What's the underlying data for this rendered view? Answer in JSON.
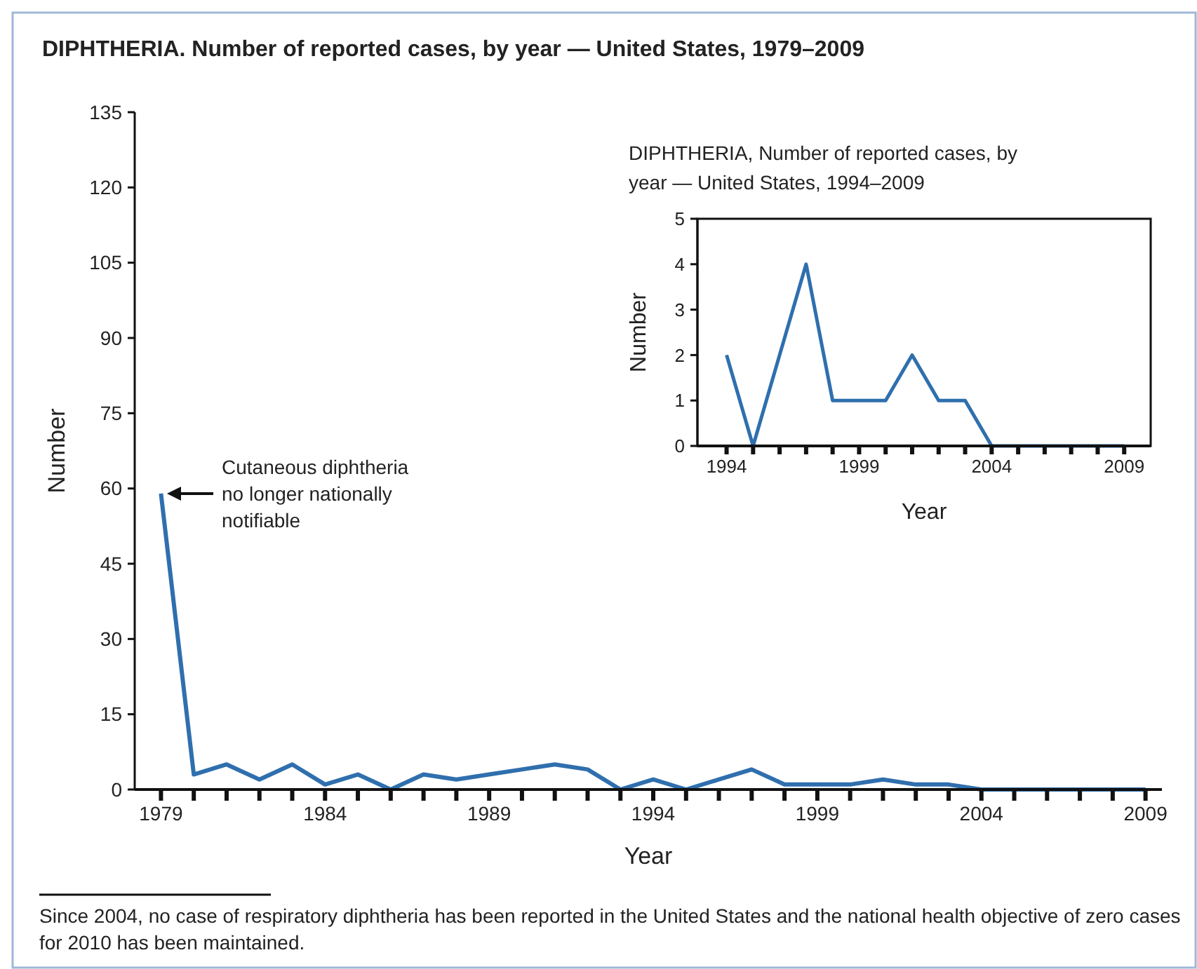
{
  "chart_data": [
    {
      "type": "line",
      "title": "DIPHTHERIA. Number of reported cases, by year — United States, 1979–2009",
      "xlabel": "Year",
      "ylabel": "Number",
      "x": [
        1979,
        1980,
        1981,
        1982,
        1983,
        1984,
        1985,
        1986,
        1987,
        1988,
        1989,
        1990,
        1991,
        1992,
        1993,
        1994,
        1995,
        1996,
        1997,
        1998,
        1999,
        2000,
        2001,
        2002,
        2003,
        2004,
        2005,
        2006,
        2007,
        2008,
        2009
      ],
      "series": [
        {
          "color": "#2f6fae",
          "values": [
            59,
            3,
            5,
            2,
            5,
            1,
            3,
            0,
            3,
            2,
            3,
            4,
            5,
            4,
            0,
            2,
            0,
            2,
            4,
            1,
            1,
            1,
            2,
            1,
            1,
            0,
            0,
            0,
            0,
            0,
            0
          ]
        }
      ],
      "xlim": [
        1978.2,
        2009.5
      ],
      "ylim": [
        0,
        135
      ],
      "xticks": [
        1979,
        {
          "value": 1980,
          "label": null
        },
        {
          "value": 1981,
          "label": null
        },
        {
          "value": 1982,
          "label": null
        },
        {
          "value": 1983,
          "label": null
        },
        1984,
        {
          "value": 1985,
          "label": null
        },
        {
          "value": 1986,
          "label": null
        },
        {
          "value": 1987,
          "label": null
        },
        {
          "value": 1988,
          "label": null
        },
        1989,
        {
          "value": 1990,
          "label": null
        },
        {
          "value": 1991,
          "label": null
        },
        {
          "value": 1992,
          "label": null
        },
        {
          "value": 1993,
          "label": null
        },
        1994,
        {
          "value": 1995,
          "label": null
        },
        {
          "value": 1996,
          "label": null
        },
        {
          "value": 1997,
          "label": null
        },
        {
          "value": 1998,
          "label": null
        },
        1999,
        {
          "value": 2000,
          "label": null
        },
        {
          "value": 2001,
          "label": null
        },
        {
          "value": 2002,
          "label": null
        },
        {
          "value": 2003,
          "label": null
        },
        2004,
        {
          "value": 2005,
          "label": null
        },
        {
          "value": 2006,
          "label": null
        },
        {
          "value": 2007,
          "label": null
        },
        {
          "value": 2008,
          "label": null
        },
        2009
      ],
      "yticks": [
        0,
        15,
        30,
        45,
        60,
        75,
        90,
        105,
        120,
        135
      ],
      "grid": false,
      "marker": "none",
      "line_style": "solid",
      "annotations": [
        "Cutaneous diphtheria no longer nationally notifiable",
        "Since 2004, no case of respiratory diphtheria has been reported in the United States and the national health objective of zero cases for 2010 has been maintained."
      ]
    },
    {
      "type": "line",
      "title": "DIPHTHERIA, Number of reported cases, by year — United States, 1994–2009",
      "xlabel": "Year",
      "ylabel": "Number",
      "x": [
        1994,
        1995,
        1996,
        1997,
        1998,
        1999,
        2000,
        2001,
        2002,
        2003,
        2004,
        2005,
        2006,
        2007,
        2008,
        2009
      ],
      "series": [
        {
          "color": "#2f6fae",
          "values": [
            2,
            0,
            2,
            4,
            1,
            1,
            1,
            2,
            1,
            1,
            0,
            0,
            0,
            0,
            0,
            0
          ]
        }
      ],
      "xlim": [
        1992.9,
        2010
      ],
      "ylim": [
        0,
        5
      ],
      "xticks": [
        1994,
        {
          "value": 1995,
          "label": null
        },
        {
          "value": 1996,
          "label": null
        },
        {
          "value": 1997,
          "label": null
        },
        {
          "value": 1998,
          "label": null
        },
        1999,
        {
          "value": 2000,
          "label": null
        },
        {
          "value": 2001,
          "label": null
        },
        {
          "value": 2002,
          "label": null
        },
        {
          "value": 2003,
          "label": null
        },
        2004,
        {
          "value": 2005,
          "label": null
        },
        {
          "value": 2006,
          "label": null
        },
        {
          "value": 2007,
          "label": null
        },
        {
          "value": 2008,
          "label": null
        },
        2009
      ],
      "yticks": [
        0,
        1,
        2,
        3,
        4,
        5
      ],
      "grid": false,
      "marker": "none",
      "line_style": "solid"
    }
  ]
}
